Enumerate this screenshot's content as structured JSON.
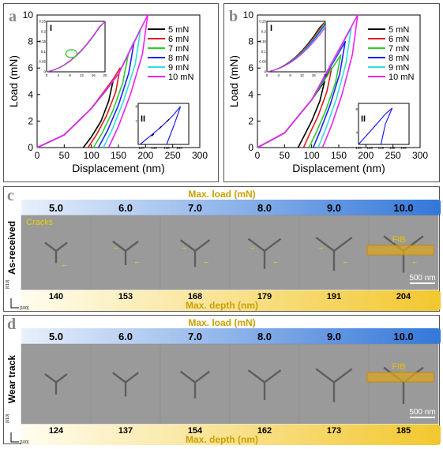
{
  "chart_data": [
    {
      "panel": "a",
      "type": "line",
      "xlabel": "Displacement (nm)",
      "ylabel": "Load (mN)",
      "xlim": [
        0,
        300
      ],
      "ylim": [
        0,
        10
      ],
      "xticks": [
        0,
        50,
        100,
        150,
        200,
        250,
        300
      ],
      "yticks": [
        0,
        2,
        4,
        6,
        8,
        10
      ],
      "legend_position": "top-right",
      "colors": [
        "#000000",
        "#e41a1c",
        "#2ecc2e",
        "#1f1fff",
        "#33dddd",
        "#ee22ee"
      ],
      "series": [
        {
          "name": "5 mN",
          "x": [
            0,
            50,
            100,
            125,
            140,
            132,
            118,
            100,
            85
          ],
          "y": [
            0,
            0.95,
            2.95,
            4.2,
            5.0,
            3.5,
            2.0,
            0.8,
            0
          ]
        },
        {
          "name": "6 mN",
          "x": [
            0,
            50,
            100,
            140,
            153,
            145,
            128,
            110,
            94
          ],
          "y": [
            0,
            0.95,
            2.95,
            5.15,
            6.0,
            4.2,
            2.4,
            1.0,
            0
          ]
        },
        {
          "name": "7 mN",
          "x": [
            0,
            50,
            100,
            150,
            168,
            158,
            140,
            120,
            104
          ],
          "y": [
            0,
            0.95,
            2.95,
            5.55,
            7.0,
            4.9,
            2.8,
            1.1,
            0
          ]
        },
        {
          "name": "8 mN",
          "x": [
            0,
            50,
            100,
            150,
            179,
            169,
            150,
            130,
            113
          ],
          "y": [
            0,
            0.95,
            2.95,
            5.55,
            8.0,
            5.6,
            3.2,
            1.3,
            0
          ]
        },
        {
          "name": "9 mN",
          "x": [
            0,
            50,
            100,
            150,
            191,
            181,
            160,
            139,
            122
          ],
          "y": [
            0,
            0.95,
            2.95,
            5.55,
            9.0,
            6.3,
            3.6,
            1.4,
            0
          ]
        },
        {
          "name": "10 mN",
          "x": [
            0,
            50,
            100,
            150,
            204,
            194,
            172,
            150,
            132
          ],
          "y": [
            0,
            0.95,
            2.95,
            5.55,
            10.0,
            7.0,
            4.0,
            1.6,
            0
          ]
        }
      ],
      "insets": [
        {
          "label": "I",
          "xticks": [
            0,
            4,
            8,
            12,
            16,
            20
          ],
          "yticks": [
            0,
            0.05,
            0.1,
            0.15,
            0.2,
            0.25
          ],
          "xlim": [
            0,
            20
          ],
          "ylim": [
            0,
            0.25
          ]
        },
        {
          "label": "II",
          "xticks": [
            120,
            140,
            160,
            180
          ],
          "yticks": [
            7,
            8
          ],
          "xlim": [
            115,
            195
          ],
          "ylim": [
            5.5,
            8.2
          ]
        }
      ]
    },
    {
      "panel": "b",
      "type": "line",
      "xlabel": "Displacement (nm)",
      "ylabel": "Load (mN)",
      "xlim": [
        0,
        300
      ],
      "ylim": [
        0,
        10
      ],
      "xticks": [
        0,
        50,
        100,
        150,
        200,
        250,
        300
      ],
      "yticks": [
        0,
        2,
        4,
        6,
        8,
        10
      ],
      "legend_position": "top-right",
      "colors": [
        "#000000",
        "#e41a1c",
        "#2ecc2e",
        "#1f1fff",
        "#33dddd",
        "#ee22ee"
      ],
      "series": [
        {
          "name": "5 mN",
          "x": [
            0,
            50,
            100,
            124,
            115,
            100,
            85,
            75
          ],
          "y": [
            0,
            1.1,
            3.6,
            5.0,
            3.5,
            2.0,
            0.8,
            0
          ]
        },
        {
          "name": "6 mN",
          "x": [
            0,
            50,
            100,
            137,
            128,
            112,
            96,
            85
          ],
          "y": [
            0,
            1.1,
            3.6,
            6.0,
            4.2,
            2.4,
            1.0,
            0
          ]
        },
        {
          "name": "7 mN",
          "x": [
            0,
            50,
            100,
            154,
            144,
            126,
            108,
            95
          ],
          "y": [
            0,
            1.1,
            3.6,
            7.0,
            4.9,
            2.8,
            1.1,
            0
          ]
        },
        {
          "name": "8 mN",
          "x": [
            0,
            50,
            100,
            162,
            152,
            134,
            116,
            103
          ],
          "y": [
            0,
            1.1,
            3.6,
            8.0,
            5.6,
            3.2,
            1.3,
            0
          ]
        },
        {
          "name": "9 mN",
          "x": [
            0,
            50,
            100,
            173,
            163,
            145,
            126,
            112
          ],
          "y": [
            0,
            1.1,
            3.6,
            9.0,
            6.3,
            3.6,
            1.4,
            0
          ]
        },
        {
          "name": "10 mN",
          "x": [
            0,
            50,
            100,
            185,
            175,
            156,
            136,
            120
          ],
          "y": [
            0,
            1.1,
            3.6,
            10.0,
            7.0,
            4.0,
            1.6,
            0
          ]
        }
      ],
      "insets": [
        {
          "label": "I",
          "xticks": [
            0,
            4,
            8,
            12,
            16,
            20
          ],
          "yticks": [
            0,
            0.05,
            0.1,
            0.15,
            0.2,
            0.25
          ],
          "xlim": [
            0,
            20
          ],
          "ylim": [
            0,
            0.25
          ]
        },
        {
          "label": "II",
          "xticks": [
            100,
            120,
            140,
            160,
            180
          ],
          "yticks": [
            4,
            8
          ],
          "xlim": [
            100,
            190
          ],
          "ylim": [
            2,
            9
          ]
        }
      ]
    },
    {
      "panel": "c",
      "type": "table",
      "row_label": "As-received",
      "top_label": "Max. load (mN)",
      "bottom_label": "Max. depth (nm)",
      "loads": [
        "5.0",
        "6.0",
        "7.0",
        "8.0",
        "9.0",
        "10.0"
      ],
      "depths": [
        "140",
        "153",
        "168",
        "179",
        "191",
        "204"
      ],
      "annotations": [
        "Cracks",
        "FIB",
        "500 nm"
      ],
      "axes_labels": [
        "[010]",
        "[100]"
      ]
    },
    {
      "panel": "d",
      "type": "table",
      "row_label": "Wear track",
      "top_label": "Max. load (mN)",
      "bottom_label": "Max. depth (nm)",
      "loads": [
        "5.0",
        "6.0",
        "7.0",
        "8.0",
        "9.0",
        "10.0"
      ],
      "depths": [
        "124",
        "137",
        "154",
        "162",
        "173",
        "185"
      ],
      "annotations": [
        "FIB",
        "500 nm"
      ],
      "axes_labels": [
        "[010]",
        "[100]"
      ]
    }
  ]
}
